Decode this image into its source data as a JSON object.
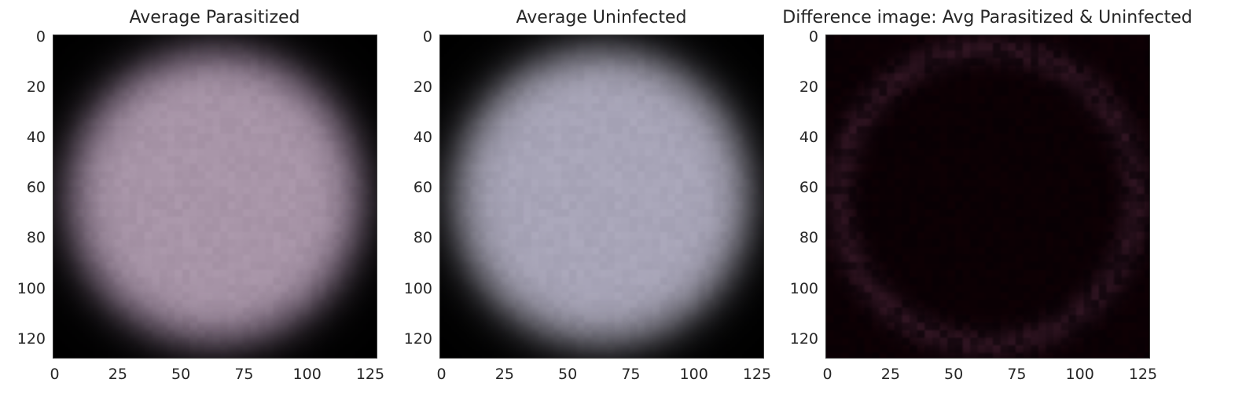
{
  "panels": [
    {
      "title": "Average Parasitized",
      "image_kind": "parasitized",
      "xticks": [
        "0",
        "25",
        "50",
        "75",
        "100",
        "125"
      ],
      "xtick_values": [
        0,
        25,
        50,
        75,
        100,
        125
      ],
      "yticks": [
        "0",
        "20",
        "40",
        "60",
        "80",
        "100",
        "120"
      ],
      "ytick_values": [
        0,
        20,
        40,
        60,
        80,
        100,
        120
      ],
      "xlim": [
        -0.5,
        127.5
      ],
      "ylim": [
        127.5,
        -0.5
      ],
      "colors": {
        "cell": "#a895a8",
        "edge": "#7e6c80",
        "background": "#000000"
      }
    },
    {
      "title": "Average Uninfected",
      "image_kind": "uninfected",
      "xticks": [
        "0",
        "25",
        "50",
        "75",
        "100",
        "125"
      ],
      "xtick_values": [
        0,
        25,
        50,
        75,
        100,
        125
      ],
      "yticks": [
        "0",
        "20",
        "40",
        "60",
        "80",
        "100",
        "120"
      ],
      "ytick_values": [
        0,
        20,
        40,
        60,
        80,
        100,
        120
      ],
      "xlim": [
        -0.5,
        127.5
      ],
      "ylim": [
        127.5,
        -0.5
      ],
      "colors": {
        "cell": "#a8a5b8",
        "edge": "#8a8894",
        "background": "#000000"
      }
    },
    {
      "title": "Difference image: Avg Parasitized & Uninfected",
      "image_kind": "difference",
      "xticks": [
        "0",
        "25",
        "50",
        "75",
        "100",
        "125"
      ],
      "xtick_values": [
        0,
        25,
        50,
        75,
        100,
        125
      ],
      "yticks": [
        "0",
        "20",
        "40",
        "60",
        "80",
        "100",
        "120"
      ],
      "ytick_values": [
        0,
        20,
        40,
        60,
        80,
        100,
        120
      ],
      "xlim": [
        -0.5,
        127.5
      ],
      "ylim": [
        127.5,
        -0.5
      ],
      "colors": {
        "cell": "#080004",
        "edge": "#2a1a22",
        "background": "#000000"
      }
    }
  ]
}
